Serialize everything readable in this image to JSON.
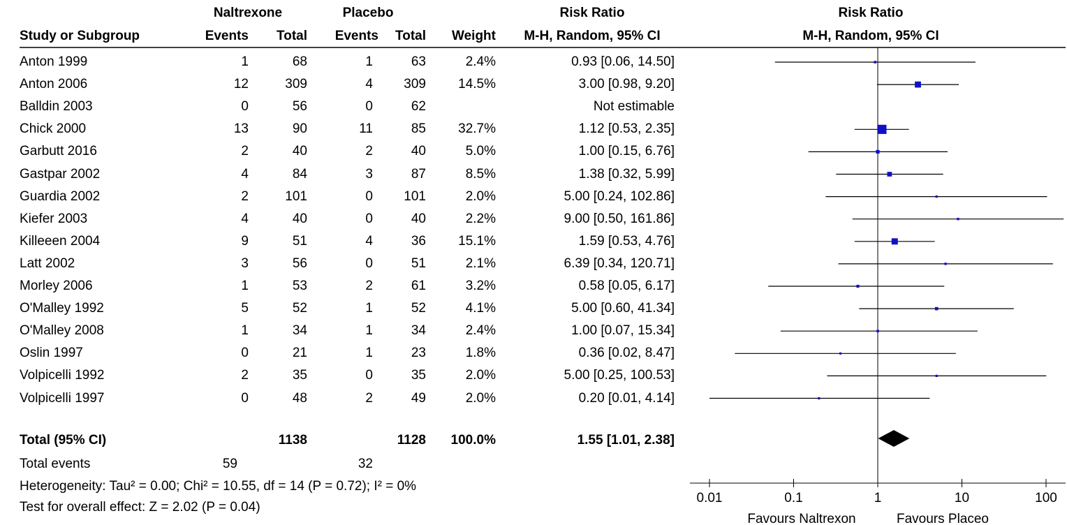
{
  "header": {
    "group1": "Naltrexone",
    "group2": "Placebo",
    "rr_title": "Risk Ratio",
    "study_col": "Study or Subgroup",
    "events1": "Events",
    "total1": "Total",
    "events2": "Events",
    "total2": "Total",
    "weight": "Weight",
    "method": "M-H, Random, 95% CI",
    "plot_title": "Risk Ratio",
    "plot_method": "M-H, Random, 95% CI"
  },
  "studies": [
    {
      "name": "Anton 1999",
      "e1": "1",
      "t1": "68",
      "e2": "1",
      "t2": "63",
      "weight": "2.4%",
      "ci": "0.93 [0.06, 14.50]"
    },
    {
      "name": "Anton 2006",
      "e1": "12",
      "t1": "309",
      "e2": "4",
      "t2": "309",
      "weight": "14.5%",
      "ci": "3.00 [0.98, 9.20]"
    },
    {
      "name": "Balldin 2003",
      "e1": "0",
      "t1": "56",
      "e2": "0",
      "t2": "62",
      "weight": "",
      "ci": "Not estimable"
    },
    {
      "name": "Chick 2000",
      "e1": "13",
      "t1": "90",
      "e2": "11",
      "t2": "85",
      "weight": "32.7%",
      "ci": "1.12 [0.53, 2.35]"
    },
    {
      "name": "Garbutt 2016",
      "e1": "2",
      "t1": "40",
      "e2": "2",
      "t2": "40",
      "weight": "5.0%",
      "ci": "1.00 [0.15, 6.76]"
    },
    {
      "name": "Gastpar 2002",
      "e1": "4",
      "t1": "84",
      "e2": "3",
      "t2": "87",
      "weight": "8.5%",
      "ci": "1.38 [0.32, 5.99]"
    },
    {
      "name": "Guardia 2002",
      "e1": "2",
      "t1": "101",
      "e2": "0",
      "t2": "101",
      "weight": "2.0%",
      "ci": "5.00 [0.24, 102.86]"
    },
    {
      "name": "Kiefer 2003",
      "e1": "4",
      "t1": "40",
      "e2": "0",
      "t2": "40",
      "weight": "2.2%",
      "ci": "9.00 [0.50, 161.86]"
    },
    {
      "name": "Killeeen 2004",
      "e1": "9",
      "t1": "51",
      "e2": "4",
      "t2": "36",
      "weight": "15.1%",
      "ci": "1.59 [0.53, 4.76]"
    },
    {
      "name": "Latt 2002",
      "e1": "3",
      "t1": "56",
      "e2": "0",
      "t2": "51",
      "weight": "2.1%",
      "ci": "6.39 [0.34, 120.71]"
    },
    {
      "name": "Morley 2006",
      "e1": "1",
      "t1": "53",
      "e2": "2",
      "t2": "61",
      "weight": "3.2%",
      "ci": "0.58 [0.05, 6.17]"
    },
    {
      "name": "O'Malley 1992",
      "e1": "5",
      "t1": "52",
      "e2": "1",
      "t2": "52",
      "weight": "4.1%",
      "ci": "5.00 [0.60, 41.34]"
    },
    {
      "name": "O'Malley 2008",
      "e1": "1",
      "t1": "34",
      "e2": "1",
      "t2": "34",
      "weight": "2.4%",
      "ci": "1.00 [0.07, 15.34]"
    },
    {
      "name": "Oslin 1997",
      "e1": "0",
      "t1": "21",
      "e2": "1",
      "t2": "23",
      "weight": "1.8%",
      "ci": "0.36 [0.02, 8.47]"
    },
    {
      "name": "Volpicelli 1992",
      "e1": "2",
      "t1": "35",
      "e2": "0",
      "t2": "35",
      "weight": "2.0%",
      "ci": "5.00 [0.25, 100.53]"
    },
    {
      "name": "Volpicelli 1997",
      "e1": "0",
      "t1": "48",
      "e2": "2",
      "t2": "49",
      "weight": "2.0%",
      "ci": "0.20 [0.01, 4.14]"
    }
  ],
  "total": {
    "label": "Total (95% CI)",
    "t1": "1138",
    "t2": "1128",
    "weight": "100.0%",
    "ci": "1.55 [1.01, 2.38]"
  },
  "total_events": {
    "label": "Total events",
    "e1": "59",
    "e2": "32"
  },
  "heterogeneity": "Heterogeneity: Tau² = 0.00; Chi² = 10.55, df = 14 (P = 0.72); I² = 0%",
  "overall_effect": "Test for overall effect: Z = 2.02 (P = 0.04)",
  "colors": {
    "marker": "#1010c8",
    "line": "#000000",
    "diamond": "#000000"
  },
  "chart_data": {
    "type": "forest",
    "title": "Risk Ratio",
    "subtitle": "M-H, Random, 95% CI",
    "x_scale": "log",
    "xlim": [
      0.01,
      100
    ],
    "x_ticks": [
      "0.01",
      "0.1",
      "1",
      "10",
      "100"
    ],
    "x_tick_values": [
      0.01,
      0.1,
      1,
      10,
      100
    ],
    "reference_line": 1,
    "left_label": "Favours Naltrexon",
    "right_label": "Favours Placeo",
    "points": [
      {
        "name": "Anton 1999",
        "rr": 0.93,
        "lo": 0.06,
        "hi": 14.5,
        "weight": 2.4
      },
      {
        "name": "Anton 2006",
        "rr": 3.0,
        "lo": 0.98,
        "hi": 9.2,
        "weight": 14.5
      },
      {
        "name": "Balldin 2003",
        "rr": null,
        "lo": null,
        "hi": null,
        "weight": null
      },
      {
        "name": "Chick 2000",
        "rr": 1.12,
        "lo": 0.53,
        "hi": 2.35,
        "weight": 32.7
      },
      {
        "name": "Garbutt 2016",
        "rr": 1.0,
        "lo": 0.15,
        "hi": 6.76,
        "weight": 5.0
      },
      {
        "name": "Gastpar 2002",
        "rr": 1.38,
        "lo": 0.32,
        "hi": 5.99,
        "weight": 8.5
      },
      {
        "name": "Guardia 2002",
        "rr": 5.0,
        "lo": 0.24,
        "hi": 102.86,
        "weight": 2.0
      },
      {
        "name": "Kiefer 2003",
        "rr": 9.0,
        "lo": 0.5,
        "hi": 161.86,
        "weight": 2.2
      },
      {
        "name": "Killeeen 2004",
        "rr": 1.59,
        "lo": 0.53,
        "hi": 4.76,
        "weight": 15.1
      },
      {
        "name": "Latt 2002",
        "rr": 6.39,
        "lo": 0.34,
        "hi": 120.71,
        "weight": 2.1
      },
      {
        "name": "Morley 2006",
        "rr": 0.58,
        "lo": 0.05,
        "hi": 6.17,
        "weight": 3.2
      },
      {
        "name": "O'Malley 1992",
        "rr": 5.0,
        "lo": 0.6,
        "hi": 41.34,
        "weight": 4.1
      },
      {
        "name": "O'Malley 2008",
        "rr": 1.0,
        "lo": 0.07,
        "hi": 15.34,
        "weight": 2.4
      },
      {
        "name": "Oslin 1997",
        "rr": 0.36,
        "lo": 0.02,
        "hi": 8.47,
        "weight": 1.8
      },
      {
        "name": "Volpicelli 1992",
        "rr": 5.0,
        "lo": 0.25,
        "hi": 100.53,
        "weight": 2.0
      },
      {
        "name": "Volpicelli 1997",
        "rr": 0.2,
        "lo": 0.01,
        "hi": 4.14,
        "weight": 2.0
      }
    ],
    "pooled": {
      "rr": 1.55,
      "lo": 1.01,
      "hi": 2.38
    }
  }
}
